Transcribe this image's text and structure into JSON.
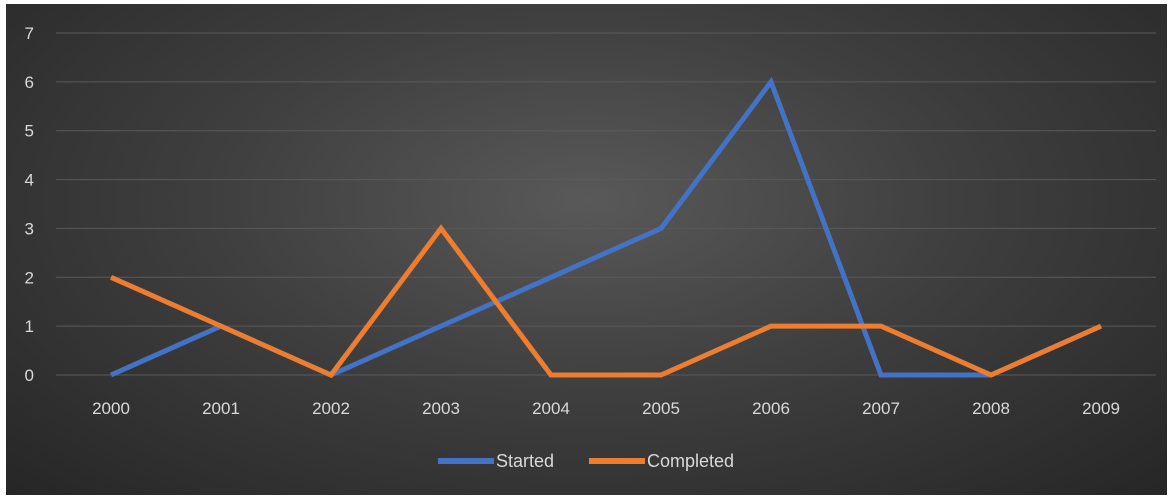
{
  "chart_data": {
    "type": "line",
    "title": "",
    "xlabel": "",
    "ylabel": "",
    "categories": [
      "2000",
      "2001",
      "2002",
      "2003",
      "2004",
      "2005",
      "2006",
      "2007",
      "2008",
      "2009"
    ],
    "series": [
      {
        "name": "Started",
        "color": "#4472c4",
        "values": [
          0,
          1,
          0,
          1,
          2,
          3,
          6,
          0,
          0,
          1
        ]
      },
      {
        "name": "Completed",
        "color": "#ed7d31",
        "values": [
          2,
          1,
          0,
          3,
          0,
          0,
          1,
          1,
          0,
          1
        ]
      }
    ],
    "ylim": [
      0,
      7
    ],
    "yticks": [
      0,
      1,
      2,
      3,
      4,
      5,
      6,
      7
    ],
    "grid": true,
    "legend": "bottom"
  }
}
